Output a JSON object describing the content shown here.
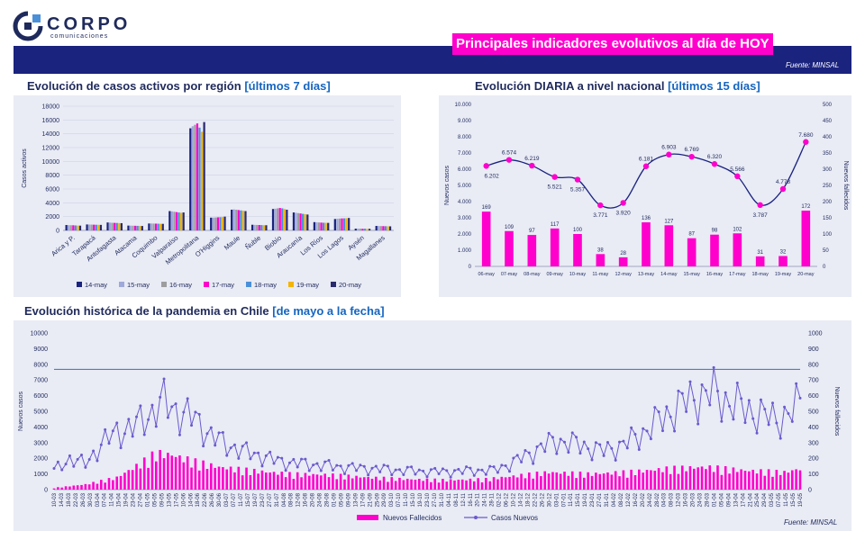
{
  "header": {
    "logo_name": "CORPO",
    "logo_sub": "comunicaciones",
    "banner_title": "Principales indicadores evolutivos al día de HOY",
    "source_top": "Fuente: MINSAL",
    "source_bottom": "Fuente: MINSAL"
  },
  "sections": {
    "region_title_main": "Evolución de casos activos por región",
    "region_title_hl": "[últimos 7 días]",
    "daily_title_main": "Evolución DIARIA  a nivel nacional",
    "daily_title_hl": "[últimos 15 días]",
    "hist_title_main": "Evolución histórica de la pandemia en Chile",
    "hist_title_hl": "[de mayo a la fecha]"
  },
  "colors": {
    "navy": "#1a237e",
    "magenta": "#ff00cc",
    "purple": "#6a5acd",
    "panel": "#e9ebf5"
  },
  "chart_data": [
    {
      "type": "bar",
      "ylabel": "Casos activos",
      "ylim": [
        0,
        18000
      ],
      "yticks": [
        0,
        2000,
        4000,
        6000,
        8000,
        10000,
        12000,
        14000,
        16000,
        18000
      ],
      "categories": [
        "Arica y P.",
        "Tarapacá",
        "Antofagasta",
        "Atacama",
        "Coquimbo",
        "Valparaíso",
        "Metropolitana",
        "O'Higgins",
        "Maule",
        "Ñuble",
        "Biobío",
        "Araucanía",
        "Los Ríos",
        "Los Lagos",
        "Aysén",
        "Magallanes"
      ],
      "legend_position": "bottom",
      "series": [
        {
          "name": "14-may",
          "color": "#1a237e",
          "values": [
            780,
            860,
            1150,
            700,
            1000,
            2800,
            14800,
            1850,
            3000,
            820,
            3100,
            2600,
            1200,
            1650,
            250,
            650
          ]
        },
        {
          "name": "15-may",
          "color": "#9fa8da",
          "values": [
            760,
            850,
            1130,
            690,
            1000,
            2750,
            15100,
            1860,
            3050,
            800,
            3150,
            2550,
            1180,
            1700,
            260,
            640
          ]
        },
        {
          "name": "16-may",
          "color": "#9e9e9e",
          "values": [
            750,
            840,
            1100,
            680,
            990,
            2700,
            15300,
            1880,
            3000,
            790,
            3200,
            2500,
            1150,
            1720,
            250,
            630
          ]
        },
        {
          "name": "17-may",
          "color": "#ff00cc",
          "values": [
            740,
            830,
            1090,
            670,
            980,
            2650,
            15500,
            1900,
            2950,
            780,
            3250,
            2450,
            1130,
            1740,
            240,
            620
          ]
        },
        {
          "name": "18-may",
          "color": "#4a90d9",
          "values": [
            720,
            820,
            1080,
            660,
            970,
            2600,
            14900,
            1920,
            2900,
            770,
            3200,
            2400,
            1110,
            1750,
            240,
            610
          ]
        },
        {
          "name": "19-may",
          "color": "#f4b400",
          "values": [
            700,
            810,
            1060,
            650,
            960,
            2550,
            14300,
            1940,
            2850,
            760,
            3100,
            2350,
            1100,
            1770,
            230,
            600
          ]
        },
        {
          "name": "20-may",
          "color": "#2a2a6e",
          "values": [
            690,
            800,
            1050,
            640,
            950,
            2600,
            15700,
            2000,
            2800,
            750,
            3000,
            2300,
            1090,
            1800,
            230,
            590
          ]
        }
      ]
    },
    {
      "type": "bar+line",
      "ylabel_left": "Nuevos casos",
      "ylabel_right": "Nuevos fallecidos",
      "ylim_left": [
        0,
        10000
      ],
      "ylim_right": [
        0,
        500
      ],
      "yticks_left": [
        "0",
        "1.000",
        "2.000",
        "3.000",
        "4.000",
        "5.000",
        "6.000",
        "7.000",
        "8.000",
        "9.000",
        "10.000"
      ],
      "yticks_right": [
        "0",
        "50",
        "100",
        "150",
        "200",
        "250",
        "300",
        "350",
        "400",
        "450",
        "500"
      ],
      "categories": [
        "06-may",
        "07-may",
        "08-may",
        "09-may",
        "10-may",
        "11-may",
        "12-may",
        "13-may",
        "14-may",
        "15-may",
        "16-may",
        "17-may",
        "18-may",
        "19-may",
        "20-may"
      ],
      "deaths": [
        169,
        109,
        97,
        117,
        100,
        38,
        28,
        136,
        127,
        87,
        98,
        102,
        31,
        32,
        172
      ],
      "deaths_labels": [
        "169",
        "109",
        "97",
        "117",
        "100",
        "38",
        "28",
        "136",
        "127",
        "87",
        "98",
        "102",
        "31",
        "32",
        "172"
      ],
      "cases": [
        6202,
        6574,
        6219,
        5521,
        5357,
        3771,
        3920,
        6181,
        6903,
        6769,
        6320,
        5566,
        3787,
        4778,
        7680
      ],
      "cases_labels": [
        "6.202",
        "6.574",
        "6.219",
        "5.521",
        "5.357",
        "3.771",
        "3.920",
        "6.181",
        "6.903",
        "6.769",
        "6.320",
        "5.566",
        "3.787",
        "4.778",
        "7.680"
      ]
    },
    {
      "type": "bar+line",
      "ylabel_left": "Nuevos casos",
      "ylabel_right": "Nuevos fallecidos",
      "ylim_left": [
        0,
        10000
      ],
      "ylim_right": [
        0,
        1000
      ],
      "yticks_left": [
        "0",
        "1000",
        "2000",
        "3000",
        "4000",
        "5000",
        "6000",
        "7000",
        "8000",
        "9000",
        "10000"
      ],
      "yticks_right": [
        "0",
        "100",
        "200",
        "300",
        "400",
        "500",
        "600",
        "700",
        "800",
        "900",
        "1000"
      ],
      "reference_line": 7680,
      "legend_position": "bottom",
      "legend_deaths": "Nuevos Fallecidos",
      "legend_cases": "Casos Nuevos",
      "date_labels": [
        "10-03",
        "14-03",
        "18-03",
        "22-03",
        "26-03",
        "30-03",
        "03-04",
        "07-04",
        "11-04",
        "15-04",
        "19-04",
        "23-04",
        "27-04",
        "01-05",
        "05-05",
        "09-05",
        "13-05",
        "17-05",
        "10-06",
        "14-06",
        "18-06",
        "22-06",
        "26-06",
        "30-06",
        "03-07",
        "07-07",
        "11-07",
        "15-07",
        "19-07",
        "23-07",
        "27-07",
        "31-07",
        "04-08",
        "08-08",
        "12-08",
        "16-08",
        "20-08",
        "24-08",
        "28-08",
        "01-09",
        "05-09",
        "09-09",
        "13-09",
        "17-09",
        "21-09",
        "25-09",
        "29-09",
        "03-10",
        "07-10",
        "11-10",
        "15-10",
        "19-10",
        "23-10",
        "27-10",
        "31-10",
        "04-11",
        "08-11",
        "12-11",
        "16-11",
        "20-11",
        "24-11",
        "28-11",
        "02-12",
        "06-12",
        "10-12",
        "14-12",
        "18-12",
        "22-12",
        "26-12",
        "30-12",
        "03-01",
        "07-01",
        "11-01",
        "15-01",
        "19-01",
        "23-01",
        "27-01",
        "31-01",
        "04-02",
        "08-02",
        "12-02",
        "16-02",
        "20-02",
        "24-02",
        "28-02",
        "04-03",
        "08-03",
        "12-03",
        "16-03",
        "20-03",
        "24-03",
        "28-03",
        "01-04",
        "05-04",
        "09-04",
        "13-04",
        "17-04",
        "21-04",
        "25-04",
        "29-04",
        "03-05",
        "07-05",
        "11-05",
        "15-05",
        "19-05"
      ],
      "cases_envelope": [
        [
          0,
          1500
        ],
        [
          4,
          2400
        ],
        [
          8,
          2000
        ],
        [
          12,
          3500
        ],
        [
          16,
          4500
        ],
        [
          20,
          4800
        ],
        [
          24,
          5800
        ],
        [
          28,
          6800
        ],
        [
          32,
          6000
        ],
        [
          36,
          5500
        ],
        [
          40,
          4200
        ],
        [
          44,
          3500
        ],
        [
          48,
          3000
        ],
        [
          52,
          2700
        ],
        [
          56,
          2300
        ],
        [
          60,
          2100
        ],
        [
          64,
          2000
        ],
        [
          68,
          1900
        ],
        [
          72,
          1800
        ],
        [
          76,
          1700
        ],
        [
          80,
          1650
        ],
        [
          84,
          1600
        ],
        [
          88,
          1500
        ],
        [
          92,
          1450
        ],
        [
          96,
          1400
        ],
        [
          100,
          1400
        ],
        [
          104,
          1450
        ],
        [
          108,
          1500
        ],
        [
          112,
          1500
        ],
        [
          116,
          2000
        ],
        [
          120,
          2600
        ],
        [
          124,
          3300
        ],
        [
          128,
          3800
        ],
        [
          132,
          3600
        ],
        [
          136,
          3300
        ],
        [
          140,
          3000
        ],
        [
          144,
          3400
        ],
        [
          148,
          4000
        ],
        [
          152,
          4900
        ],
        [
          156,
          5800
        ],
        [
          160,
          6700
        ],
        [
          164,
          7300
        ],
        [
          168,
          7500
        ],
        [
          172,
          6800
        ],
        [
          176,
          6300
        ],
        [
          180,
          5800
        ],
        [
          184,
          5500
        ],
        [
          188,
          5900
        ],
        [
          190,
          7000
        ]
      ],
      "deaths_envelope": [
        [
          0,
          10
        ],
        [
          8,
          30
        ],
        [
          16,
          70
        ],
        [
          22,
          150
        ],
        [
          26,
          210
        ],
        [
          30,
          200
        ],
        [
          36,
          160
        ],
        [
          42,
          130
        ],
        [
          50,
          110
        ],
        [
          60,
          90
        ],
        [
          70,
          85
        ],
        [
          80,
          70
        ],
        [
          90,
          60
        ],
        [
          100,
          55
        ],
        [
          110,
          60
        ],
        [
          118,
          80
        ],
        [
          126,
          100
        ],
        [
          136,
          90
        ],
        [
          146,
          100
        ],
        [
          156,
          120
        ],
        [
          166,
          130
        ],
        [
          176,
          110
        ],
        [
          186,
          100
        ],
        [
          190,
          120
        ]
      ]
    }
  ]
}
